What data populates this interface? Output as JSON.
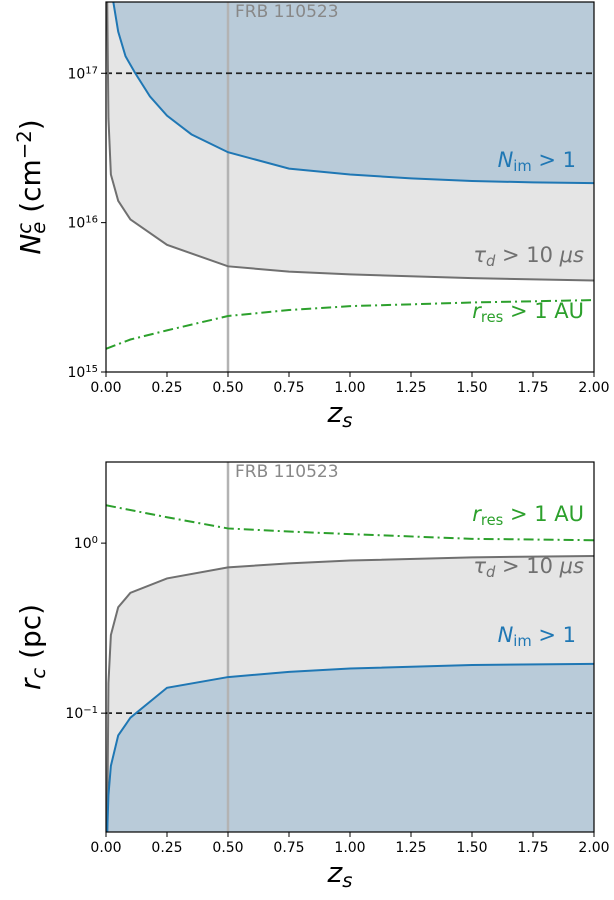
{
  "chart_data": [
    {
      "type": "line",
      "yscale": "log",
      "xlim": [
        0,
        2
      ],
      "ylim": [
        1000000000000000.0,
        3e+17
      ],
      "xticks": [
        {
          "value": 0,
          "label": "0.00"
        },
        {
          "value": 0.25,
          "label": "0.25"
        },
        {
          "value": 0.5,
          "label": "0.50"
        },
        {
          "value": 0.75,
          "label": "0.75"
        },
        {
          "value": 1,
          "label": "1.00"
        },
        {
          "value": 1.25,
          "label": "1.25"
        },
        {
          "value": 1.5,
          "label": "1.50"
        },
        {
          "value": 1.75,
          "label": "1.75"
        },
        {
          "value": 2,
          "label": "2.00"
        }
      ],
      "yticks": [
        {
          "value": 1000000000000000.0,
          "label": "10",
          "exp": "15"
        },
        {
          "value": 1e+16,
          "label": "10",
          "exp": "16"
        },
        {
          "value": 1e+17,
          "label": "10",
          "exp": "17"
        }
      ],
      "xlabel": [
        {
          "text": "z",
          "italic": true
        },
        {
          "text": "s",
          "pos": "sub",
          "italic": true
        }
      ],
      "ylabel": [
        {
          "text": "N",
          "italic": true
        },
        {
          "text": "c",
          "pos": "sup",
          "italic": true
        },
        {
          "text": "e",
          "pos": "sub",
          "italic": true
        },
        {
          "text": " (cm"
        },
        {
          "text": "−2",
          "pos": "sup"
        },
        {
          "text": ")"
        }
      ],
      "hline": 1e+17,
      "vline": {
        "x": 0.5,
        "label": "FRB 110523"
      },
      "series": [
        {
          "name": [
            {
              "text": "τ",
              "italic": true
            },
            {
              "text": "d",
              "pos": "sub",
              "italic": true
            },
            {
              "text": " > 10 "
            },
            {
              "text": "μ",
              "italic": true
            },
            {
              "text": "s",
              "italic": true
            }
          ],
          "color": "#707070",
          "fill": "above",
          "fill_color": "#e5e5e5",
          "x": [
            0.005,
            0.01,
            0.02,
            0.05,
            0.1,
            0.25,
            0.5,
            0.75,
            1,
            1.5,
            2
          ],
          "values": [
            3e+17,
            5e+16,
            2.1e+16,
            1.4e+16,
            1.05e+16,
            7100000000000000.0,
            5100000000000000.0,
            4700000000000000.0,
            4500000000000000.0,
            4250000000000000.0,
            4100000000000000.0
          ]
        },
        {
          "name": [
            {
              "text": "N",
              "italic": true
            },
            {
              "text": "im",
              "pos": "sub"
            },
            {
              "text": " > 1"
            }
          ],
          "color": "#1f77b4",
          "fill": "above",
          "fill_color": "#b9cbd9",
          "x": [
            0.03,
            0.05,
            0.08,
            0.12,
            0.18,
            0.25,
            0.35,
            0.5,
            0.75,
            1,
            1.25,
            1.5,
            1.75,
            2
          ],
          "values": [
            3e+17,
            1.9e+17,
            1.3e+17,
            1e+17,
            7e+16,
            5.2e+16,
            3.9e+16,
            2.96e+16,
            2.3e+16,
            2.1e+16,
            1.98e+16,
            1.9e+16,
            1.86e+16,
            1.84e+16
          ]
        },
        {
          "name": [
            {
              "text": "r",
              "italic": true
            },
            {
              "text": "res",
              "pos": "sub"
            },
            {
              "text": " > 1 AU"
            }
          ],
          "color": "#2ca02c",
          "linestyle": "dashdot",
          "x": [
            0,
            0.1,
            0.25,
            0.5,
            0.75,
            1,
            1.5,
            2
          ],
          "values": [
            1430000000000000.0,
            1650000000000000.0,
            1900000000000000.0,
            2370000000000000.0,
            2600000000000000.0,
            2760000000000000.0,
            2920000000000000.0,
            3030000000000000.0
          ]
        }
      ]
    },
    {
      "type": "line",
      "yscale": "log",
      "xlim": [
        0,
        2
      ],
      "ylim": [
        0.02,
        3
      ],
      "xticks": [
        {
          "value": 0,
          "label": "0.00"
        },
        {
          "value": 0.25,
          "label": "0.25"
        },
        {
          "value": 0.5,
          "label": "0.50"
        },
        {
          "value": 0.75,
          "label": "0.75"
        },
        {
          "value": 1,
          "label": "1.00"
        },
        {
          "value": 1.25,
          "label": "1.25"
        },
        {
          "value": 1.5,
          "label": "1.50"
        },
        {
          "value": 1.75,
          "label": "1.75"
        },
        {
          "value": 2,
          "label": "2.00"
        }
      ],
      "yticks": [
        {
          "value": 0.1,
          "label": "10",
          "exp": "−1"
        },
        {
          "value": 1,
          "label": "10",
          "exp": "0"
        }
      ],
      "xlabel": [
        {
          "text": "z",
          "italic": true
        },
        {
          "text": "s",
          "pos": "sub",
          "italic": true
        }
      ],
      "ylabel": [
        {
          "text": "r",
          "italic": true
        },
        {
          "text": "c",
          "pos": "sub",
          "italic": true
        },
        {
          "text": " (pc)"
        }
      ],
      "hline": 0.1,
      "vline": {
        "x": 0.5,
        "label": "FRB 110523"
      },
      "series": [
        {
          "name": [
            {
              "text": "τ",
              "italic": true
            },
            {
              "text": "d",
              "pos": "sub",
              "italic": true
            },
            {
              "text": " > 10 "
            },
            {
              "text": "μ",
              "italic": true
            },
            {
              "text": "s",
              "italic": true
            }
          ],
          "color": "#707070",
          "fill": "below",
          "fill_color": "#e5e5e5",
          "x": [
            0.005,
            0.01,
            0.02,
            0.05,
            0.1,
            0.25,
            0.5,
            0.75,
            1,
            1.5,
            2
          ],
          "values": [
            0.02,
            0.15,
            0.288,
            0.42,
            0.51,
            0.62,
            0.72,
            0.76,
            0.79,
            0.825,
            0.84
          ]
        },
        {
          "name": [
            {
              "text": "N",
              "italic": true
            },
            {
              "text": "im",
              "pos": "sub"
            },
            {
              "text": " > 1"
            }
          ],
          "color": "#1f77b4",
          "fill": "below",
          "fill_color": "#b9cbd9",
          "x": [
            0.005,
            0.01,
            0.02,
            0.05,
            0.1,
            0.25,
            0.5,
            0.75,
            1,
            1.5,
            2
          ],
          "values": [
            0.02,
            0.033,
            0.049,
            0.074,
            0.094,
            0.141,
            0.163,
            0.175,
            0.183,
            0.192,
            0.195
          ]
        },
        {
          "name": [
            {
              "text": "r",
              "italic": true
            },
            {
              "text": "res",
              "pos": "sub"
            },
            {
              "text": " > 1 AU"
            }
          ],
          "color": "#2ca02c",
          "linestyle": "dashdot",
          "x": [
            0,
            0.25,
            0.5,
            0.75,
            1,
            1.5,
            2
          ],
          "values": [
            1.67,
            1.42,
            1.22,
            1.17,
            1.13,
            1.06,
            1.04
          ]
        }
      ]
    }
  ]
}
